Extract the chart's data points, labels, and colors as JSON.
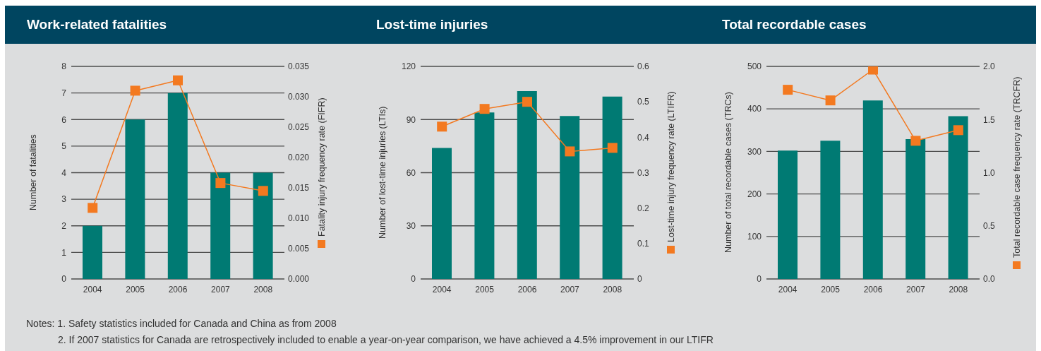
{
  "chart_data": [
    {
      "type": "bar",
      "title": "Work-related fatalities",
      "categories": [
        "2004",
        "2005",
        "2006",
        "2007",
        "2008"
      ],
      "ylabel": "Number of fatalities",
      "y2label": "Fatality injury frequency rate (FIFR)",
      "series": [
        {
          "type": "bar",
          "color": "#007a73",
          "values": [
            2,
            6,
            7,
            4,
            4
          ]
        },
        {
          "type": "line",
          "axis": "y2",
          "color": "#f37920",
          "values": [
            0.0117,
            0.031,
            0.0327,
            0.0158,
            0.0145
          ]
        }
      ],
      "marker": "square",
      "ylim": [
        0,
        8
      ],
      "yticks": [
        0,
        1,
        2,
        3,
        4,
        5,
        6,
        7,
        8
      ],
      "y2lim": [
        0,
        0.035
      ],
      "y2ticks": [
        {
          "value": 0,
          "label": "0.000"
        },
        0.005,
        {
          "value": 0.01,
          "label": "0.010"
        },
        0.015,
        {
          "value": 0.02,
          "label": "0.020"
        },
        0.025,
        {
          "value": 0.03,
          "label": "0.030"
        },
        0.035
      ],
      "grid": "y",
      "annotations": [
        "Notes: 1. Safety statistics included for Canada and China as from 2008",
        "2. If 2007 statistics for Canada are retrospectively included to enable a year-on-year comparison, we have achieved a 4.5% improvement in our LTIFR"
      ]
    },
    {
      "type": "bar",
      "title": "Lost-time injuries",
      "categories": [
        "2004",
        "2005",
        "2006",
        "2007",
        "2008"
      ],
      "ylabel": "Number of lost-time injuries (LTIs)",
      "y2label": "Lost-time injury frequency rate (LTIFR)",
      "series": [
        {
          "type": "bar",
          "color": "#007a73",
          "values": [
            74,
            94,
            106,
            92,
            103
          ]
        },
        {
          "type": "line",
          "axis": "y2",
          "color": "#f37920",
          "values": [
            0.43,
            0.48,
            0.5,
            0.36,
            0.37
          ]
        }
      ],
      "marker": "square",
      "ylim": [
        0,
        120
      ],
      "yticks": [
        0,
        30,
        60,
        90,
        120
      ],
      "y2lim": [
        0,
        0.6
      ],
      "y2ticks": [
        0,
        0.1,
        0.2,
        0.3,
        0.4,
        0.5,
        0.6
      ],
      "grid": "y"
    },
    {
      "type": "bar",
      "title": "Total recordable cases",
      "categories": [
        "2004",
        "2005",
        "2006",
        "2007",
        "2008"
      ],
      "ylabel": "Number of total recordable cases (TRCs)",
      "y2label": "Total recordable case frequency rate (TRCFR)",
      "series": [
        {
          "type": "bar",
          "color": "#007a73",
          "values": [
            302,
            325,
            420,
            329,
            383
          ]
        },
        {
          "type": "line",
          "axis": "y2",
          "color": "#f37920",
          "values": [
            1.78,
            1.68,
            1.97,
            1.3,
            1.4
          ]
        }
      ],
      "marker": "square",
      "ylim": [
        0,
        500
      ],
      "yticks": [
        0,
        100,
        200,
        300,
        400,
        500
      ],
      "y2lim": [
        0,
        2
      ],
      "y2ticks": [
        {
          "value": 0,
          "label": "0.0"
        },
        0.5,
        {
          "value": 1,
          "label": "1.0"
        },
        1.5,
        {
          "value": 2,
          "label": "2.0"
        }
      ],
      "grid": "y"
    }
  ]
}
